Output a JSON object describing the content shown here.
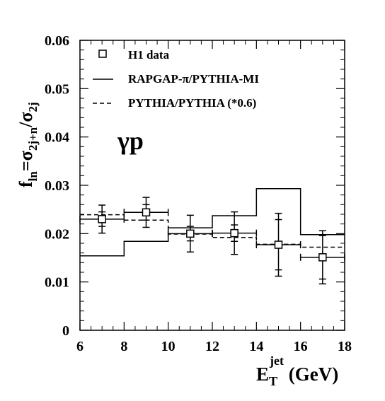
{
  "chart_data": {
    "type": "line",
    "xlabel": {
      "main": "E",
      "sub": "T",
      "sup": "jet",
      "unit": " (GeV)"
    },
    "ylabel": {
      "main": "f",
      "sub": "ln",
      "eq": "=σ",
      "sub2": "2j+n",
      "slash": "/σ",
      "sub3": "2j"
    },
    "xlim": [
      6,
      18
    ],
    "ylim": [
      0,
      0.06
    ],
    "x_ticks": [
      6,
      8,
      10,
      12,
      14,
      16,
      18
    ],
    "x_tick_labels": [
      "6",
      "8",
      "10",
      "12",
      "14",
      "16",
      "18"
    ],
    "y_ticks": [
      0,
      0.01,
      0.02,
      0.03,
      0.04,
      0.05,
      0.06
    ],
    "y_tick_labels": [
      "0",
      "0.01",
      "0.02",
      "0.03",
      "0.04",
      "0.05",
      "0.06"
    ],
    "annotation": "γp",
    "legend": {
      "position": "top-left",
      "entries": [
        {
          "label": "H1 data",
          "style": "marker-square"
        },
        {
          "label": "RAPGAP-π/PYTHIA-MI",
          "style": "solid"
        },
        {
          "label": "PYTHIA/PYTHIA (*0.6)",
          "style": "dashed"
        }
      ]
    },
    "series": [
      {
        "style": "points",
        "x": [
          7,
          9,
          11,
          13,
          15,
          17
        ],
        "y": [
          0.023,
          0.0244,
          0.02,
          0.0201,
          0.0177,
          0.0151
        ],
        "x_err": [
          1,
          1,
          1,
          1,
          1,
          1
        ],
        "y_err_stat": [
          0.0015,
          0.0016,
          0.0015,
          0.0017,
          0.0052,
          0.0045
        ],
        "y_err_tot": [
          0.0029,
          0.0031,
          0.0038,
          0.0044,
          0.0065,
          0.0055
        ]
      },
      {
        "style": "solid-histogram",
        "bin_edges": [
          6,
          8,
          10,
          12,
          14,
          16,
          18
        ],
        "values": [
          0.0154,
          0.0184,
          0.0212,
          0.0237,
          0.0293,
          0.0198
        ]
      },
      {
        "style": "dashed-histogram",
        "bin_edges": [
          6,
          8,
          10,
          12,
          14,
          16,
          18
        ],
        "values": [
          0.0239,
          0.0228,
          0.0199,
          0.0192,
          0.0178,
          0.0172
        ]
      }
    ],
    "grid": false
  }
}
